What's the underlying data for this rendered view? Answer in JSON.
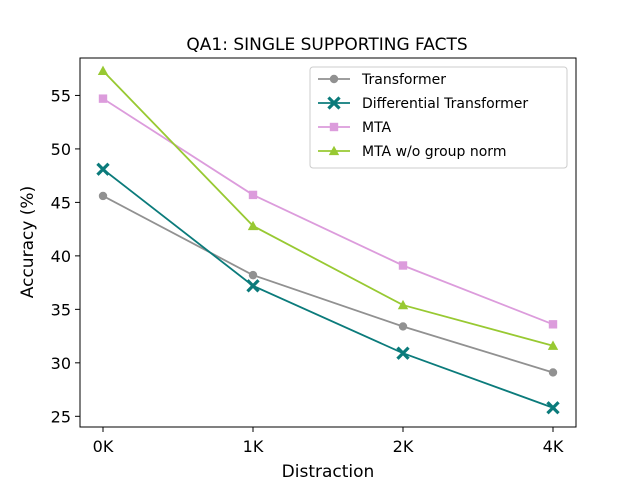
{
  "chart_data": {
    "type": "line",
    "title": "QA1: SINGLE SUPPORTING FACTS",
    "xlabel": "Distraction",
    "ylabel": "Accuracy (%)",
    "categories": [
      "0K",
      "1K",
      "2K",
      "4K"
    ],
    "ylim": [
      24,
      58.5
    ],
    "yticks": [
      25,
      30,
      35,
      40,
      45,
      50,
      55
    ],
    "grid": false,
    "legend_position": "top-right",
    "series": [
      {
        "name": "Transformer",
        "color": "#919191",
        "marker": "circle",
        "values": [
          45.6,
          38.2,
          33.4,
          29.1
        ]
      },
      {
        "name": "Differential Transformer",
        "color": "#0b7b7b",
        "marker": "x",
        "values": [
          48.1,
          37.2,
          30.9,
          25.8
        ]
      },
      {
        "name": "MTA",
        "color": "#dc9cdc",
        "marker": "square",
        "values": [
          54.7,
          45.7,
          39.1,
          33.6
        ]
      },
      {
        "name": "MTA w/o group norm",
        "color": "#98c932",
        "marker": "triangle",
        "values": [
          57.3,
          42.8,
          35.4,
          31.6
        ]
      }
    ]
  }
}
